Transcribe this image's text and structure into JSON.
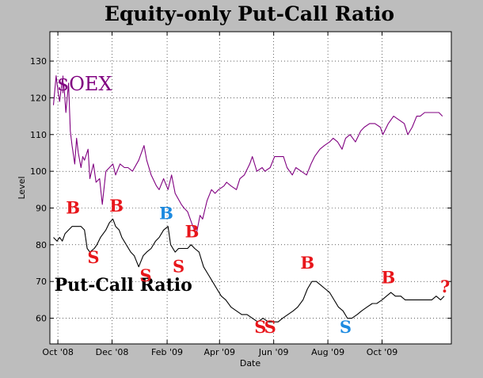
{
  "chart_data": {
    "type": "line",
    "title": "Equity-only Put-Call Ratio",
    "xlabel": "Date",
    "ylabel": "Level",
    "ylim": [
      53,
      138
    ],
    "yticks": [
      60,
      70,
      80,
      90,
      100,
      110,
      120,
      130
    ],
    "xlim": [
      "2008-09-22",
      "2009-12-18"
    ],
    "xticks": [
      {
        "date": "2008-10-01",
        "label": "Oct '08"
      },
      {
        "date": "2008-12-01",
        "label": "Dec '08"
      },
      {
        "date": "2009-02-01",
        "label": "Feb '09"
      },
      {
        "date": "2009-04-01",
        "label": "Apr '09"
      },
      {
        "date": "2009-06-01",
        "label": "Jun '09"
      },
      {
        "date": "2009-08-01",
        "label": "Aug '09"
      },
      {
        "date": "2009-10-01",
        "label": "Oct '09"
      }
    ],
    "grid": true,
    "series": [
      {
        "name": "$OEX",
        "color": "#800080",
        "points": [
          [
            "2008-09-26",
            118
          ],
          [
            "2008-09-29",
            126
          ],
          [
            "2008-10-01",
            122
          ],
          [
            "2008-10-03",
            119
          ],
          [
            "2008-10-06",
            125
          ],
          [
            "2008-10-08",
            123
          ],
          [
            "2008-10-10",
            116
          ],
          [
            "2008-10-13",
            124
          ],
          [
            "2008-10-15",
            111
          ],
          [
            "2008-10-17",
            107
          ],
          [
            "2008-10-20",
            102
          ],
          [
            "2008-10-22",
            109
          ],
          [
            "2008-10-24",
            105
          ],
          [
            "2008-10-27",
            101
          ],
          [
            "2008-10-29",
            104
          ],
          [
            "2008-10-31",
            103
          ],
          [
            "2008-11-04",
            106
          ],
          [
            "2008-11-06",
            98
          ],
          [
            "2008-11-10",
            102
          ],
          [
            "2008-11-13",
            97
          ],
          [
            "2008-11-17",
            98
          ],
          [
            "2008-11-20",
            91
          ],
          [
            "2008-11-24",
            100
          ],
          [
            "2008-11-28",
            101
          ],
          [
            "2008-12-02",
            102
          ],
          [
            "2008-12-05",
            99
          ],
          [
            "2008-12-10",
            102
          ],
          [
            "2008-12-15",
            101
          ],
          [
            "2008-12-19",
            101
          ],
          [
            "2008-12-24",
            100
          ],
          [
            "2008-12-31",
            103
          ],
          [
            "2009-01-06",
            107
          ],
          [
            "2009-01-09",
            103
          ],
          [
            "2009-01-14",
            99
          ],
          [
            "2009-01-20",
            96
          ],
          [
            "2009-01-23",
            95
          ],
          [
            "2009-01-28",
            98
          ],
          [
            "2009-02-02",
            95
          ],
          [
            "2009-02-06",
            99
          ],
          [
            "2009-02-10",
            94
          ],
          [
            "2009-02-17",
            91
          ],
          [
            "2009-02-20",
            90
          ],
          [
            "2009-02-24",
            89
          ],
          [
            "2009-03-02",
            85
          ],
          [
            "2009-03-06",
            83
          ],
          [
            "2009-03-10",
            88
          ],
          [
            "2009-03-13",
            87
          ],
          [
            "2009-03-18",
            92
          ],
          [
            "2009-03-23",
            95
          ],
          [
            "2009-03-27",
            94
          ],
          [
            "2009-03-31",
            95
          ],
          [
            "2009-04-06",
            96
          ],
          [
            "2009-04-09",
            97
          ],
          [
            "2009-04-14",
            96
          ],
          [
            "2009-04-20",
            95
          ],
          [
            "2009-04-24",
            98
          ],
          [
            "2009-04-29",
            99
          ],
          [
            "2009-05-05",
            102
          ],
          [
            "2009-05-08",
            104
          ],
          [
            "2009-05-13",
            100
          ],
          [
            "2009-05-19",
            101
          ],
          [
            "2009-05-22",
            100
          ],
          [
            "2009-05-28",
            101
          ],
          [
            "2009-06-02",
            104
          ],
          [
            "2009-06-08",
            104
          ],
          [
            "2009-06-12",
            104
          ],
          [
            "2009-06-16",
            101
          ],
          [
            "2009-06-22",
            99
          ],
          [
            "2009-06-26",
            101
          ],
          [
            "2009-07-02",
            100
          ],
          [
            "2009-07-08",
            99
          ],
          [
            "2009-07-13",
            102
          ],
          [
            "2009-07-17",
            104
          ],
          [
            "2009-07-23",
            106
          ],
          [
            "2009-07-28",
            107
          ],
          [
            "2009-08-03",
            108
          ],
          [
            "2009-08-07",
            109
          ],
          [
            "2009-08-12",
            108
          ],
          [
            "2009-08-17",
            106
          ],
          [
            "2009-08-21",
            109
          ],
          [
            "2009-08-26",
            110
          ],
          [
            "2009-09-01",
            108
          ],
          [
            "2009-09-07",
            111
          ],
          [
            "2009-09-11",
            112
          ],
          [
            "2009-09-17",
            113
          ],
          [
            "2009-09-23",
            113
          ],
          [
            "2009-09-29",
            112
          ],
          [
            "2009-10-02",
            110
          ],
          [
            "2009-10-08",
            113
          ],
          [
            "2009-10-14",
            115
          ],
          [
            "2009-10-20",
            114
          ],
          [
            "2009-10-26",
            113
          ],
          [
            "2009-10-30",
            110
          ],
          [
            "2009-11-04",
            112
          ],
          [
            "2009-11-09",
            115
          ],
          [
            "2009-11-13",
            115
          ],
          [
            "2009-11-18",
            116
          ],
          [
            "2009-11-24",
            116
          ],
          [
            "2009-11-30",
            116
          ],
          [
            "2009-12-04",
            116
          ],
          [
            "2009-12-08",
            115
          ]
        ]
      },
      {
        "name": "Put-Call Ratio",
        "color": "#000000",
        "points": [
          [
            "2008-09-26",
            82
          ],
          [
            "2008-09-30",
            81
          ],
          [
            "2008-10-03",
            82
          ],
          [
            "2008-10-06",
            81
          ],
          [
            "2008-10-09",
            83
          ],
          [
            "2008-10-13",
            84
          ],
          [
            "2008-10-17",
            85
          ],
          [
            "2008-10-22",
            85
          ],
          [
            "2008-10-27",
            85
          ],
          [
            "2008-10-31",
            84
          ],
          [
            "2008-11-03",
            79
          ],
          [
            "2008-11-06",
            78
          ],
          [
            "2008-11-11",
            79
          ],
          [
            "2008-11-14",
            80
          ],
          [
            "2008-11-18",
            82
          ],
          [
            "2008-11-24",
            84
          ],
          [
            "2008-11-28",
            86
          ],
          [
            "2008-12-02",
            87
          ],
          [
            "2008-12-05",
            85
          ],
          [
            "2008-12-09",
            84
          ],
          [
            "2008-12-12",
            82
          ],
          [
            "2008-12-17",
            80
          ],
          [
            "2008-12-22",
            78
          ],
          [
            "2008-12-26",
            77
          ],
          [
            "2008-12-31",
            74
          ],
          [
            "2009-01-05",
            77
          ],
          [
            "2009-01-09",
            78
          ],
          [
            "2009-01-14",
            79
          ],
          [
            "2009-01-19",
            81
          ],
          [
            "2009-01-23",
            82
          ],
          [
            "2009-01-28",
            84
          ],
          [
            "2009-02-02",
            85
          ],
          [
            "2009-02-05",
            80
          ],
          [
            "2009-02-10",
            78
          ],
          [
            "2009-02-14",
            79
          ],
          [
            "2009-02-19",
            79
          ],
          [
            "2009-02-24",
            79
          ],
          [
            "2009-02-28",
            80
          ],
          [
            "2009-03-04",
            79
          ],
          [
            "2009-03-09",
            78
          ],
          [
            "2009-03-14",
            74
          ],
          [
            "2009-03-19",
            72
          ],
          [
            "2009-03-24",
            70
          ],
          [
            "2009-03-29",
            68
          ],
          [
            "2009-04-03",
            66
          ],
          [
            "2009-04-08",
            65
          ],
          [
            "2009-04-14",
            63
          ],
          [
            "2009-04-20",
            62
          ],
          [
            "2009-04-26",
            61
          ],
          [
            "2009-05-02",
            61
          ],
          [
            "2009-05-08",
            60
          ],
          [
            "2009-05-14",
            59
          ],
          [
            "2009-05-20",
            60
          ],
          [
            "2009-05-26",
            59
          ],
          [
            "2009-06-01",
            59
          ],
          [
            "2009-06-06",
            59
          ],
          [
            "2009-06-11",
            60
          ],
          [
            "2009-06-17",
            61
          ],
          [
            "2009-06-23",
            62
          ],
          [
            "2009-06-28",
            63
          ],
          [
            "2009-07-04",
            65
          ],
          [
            "2009-07-09",
            68
          ],
          [
            "2009-07-14",
            70
          ],
          [
            "2009-07-19",
            70
          ],
          [
            "2009-07-24",
            69
          ],
          [
            "2009-07-29",
            68
          ],
          [
            "2009-08-03",
            67
          ],
          [
            "2009-08-08",
            65
          ],
          [
            "2009-08-13",
            63
          ],
          [
            "2009-08-18",
            62
          ],
          [
            "2009-08-23",
            60
          ],
          [
            "2009-08-28",
            60
          ],
          [
            "2009-09-03",
            61
          ],
          [
            "2009-09-08",
            62
          ],
          [
            "2009-09-14",
            63
          ],
          [
            "2009-09-20",
            64
          ],
          [
            "2009-09-25",
            64
          ],
          [
            "2009-10-01",
            65
          ],
          [
            "2009-10-06",
            66
          ],
          [
            "2009-10-11",
            67
          ],
          [
            "2009-10-16",
            66
          ],
          [
            "2009-10-22",
            66
          ],
          [
            "2009-10-27",
            65
          ],
          [
            "2009-11-02",
            65
          ],
          [
            "2009-11-08",
            65
          ],
          [
            "2009-11-14",
            65
          ],
          [
            "2009-11-20",
            65
          ],
          [
            "2009-11-26",
            65
          ],
          [
            "2009-12-01",
            66
          ],
          [
            "2009-12-06",
            65
          ],
          [
            "2009-12-10",
            66
          ]
        ]
      }
    ],
    "series_labels": [
      {
        "text": "$OEX",
        "color": "#800080",
        "date": "2008-09-30",
        "y": 122,
        "size": 24
      },
      {
        "text": "Put-Call Ratio",
        "color": "#000000",
        "date": "2008-09-27",
        "y": 67.5,
        "size": 22
      }
    ],
    "annotations": [
      {
        "text": "B",
        "color": "#e8161b",
        "date": "2008-10-18",
        "y": 88.5
      },
      {
        "text": "S",
        "color": "#e8161b",
        "date": "2008-11-10",
        "y": 75
      },
      {
        "text": "B",
        "color": "#e8161b",
        "date": "2008-12-06",
        "y": 89
      },
      {
        "text": "S",
        "color": "#e8161b",
        "date": "2009-01-08",
        "y": 70
      },
      {
        "text": "B",
        "color": "#1c8ae0",
        "date": "2009-01-31",
        "y": 87
      },
      {
        "text": "S",
        "color": "#e8161b",
        "date": "2009-02-14",
        "y": 72.5
      },
      {
        "text": "B",
        "color": "#e8161b",
        "date": "2009-03-01",
        "y": 82
      },
      {
        "text": "S",
        "color": "#e8161b",
        "date": "2009-05-17",
        "y": 56
      },
      {
        "text": "S",
        "color": "#e8161b",
        "date": "2009-05-28",
        "y": 56
      },
      {
        "text": "B",
        "color": "#e8161b",
        "date": "2009-07-09",
        "y": 73.5
      },
      {
        "text": "S",
        "color": "#1c8ae0",
        "date": "2009-08-21",
        "y": 56
      },
      {
        "text": "B",
        "color": "#e8161b",
        "date": "2009-10-08",
        "y": 69.5
      },
      {
        "text": "?",
        "color": "#e8161b",
        "date": "2009-12-11",
        "y": 67
      }
    ]
  }
}
